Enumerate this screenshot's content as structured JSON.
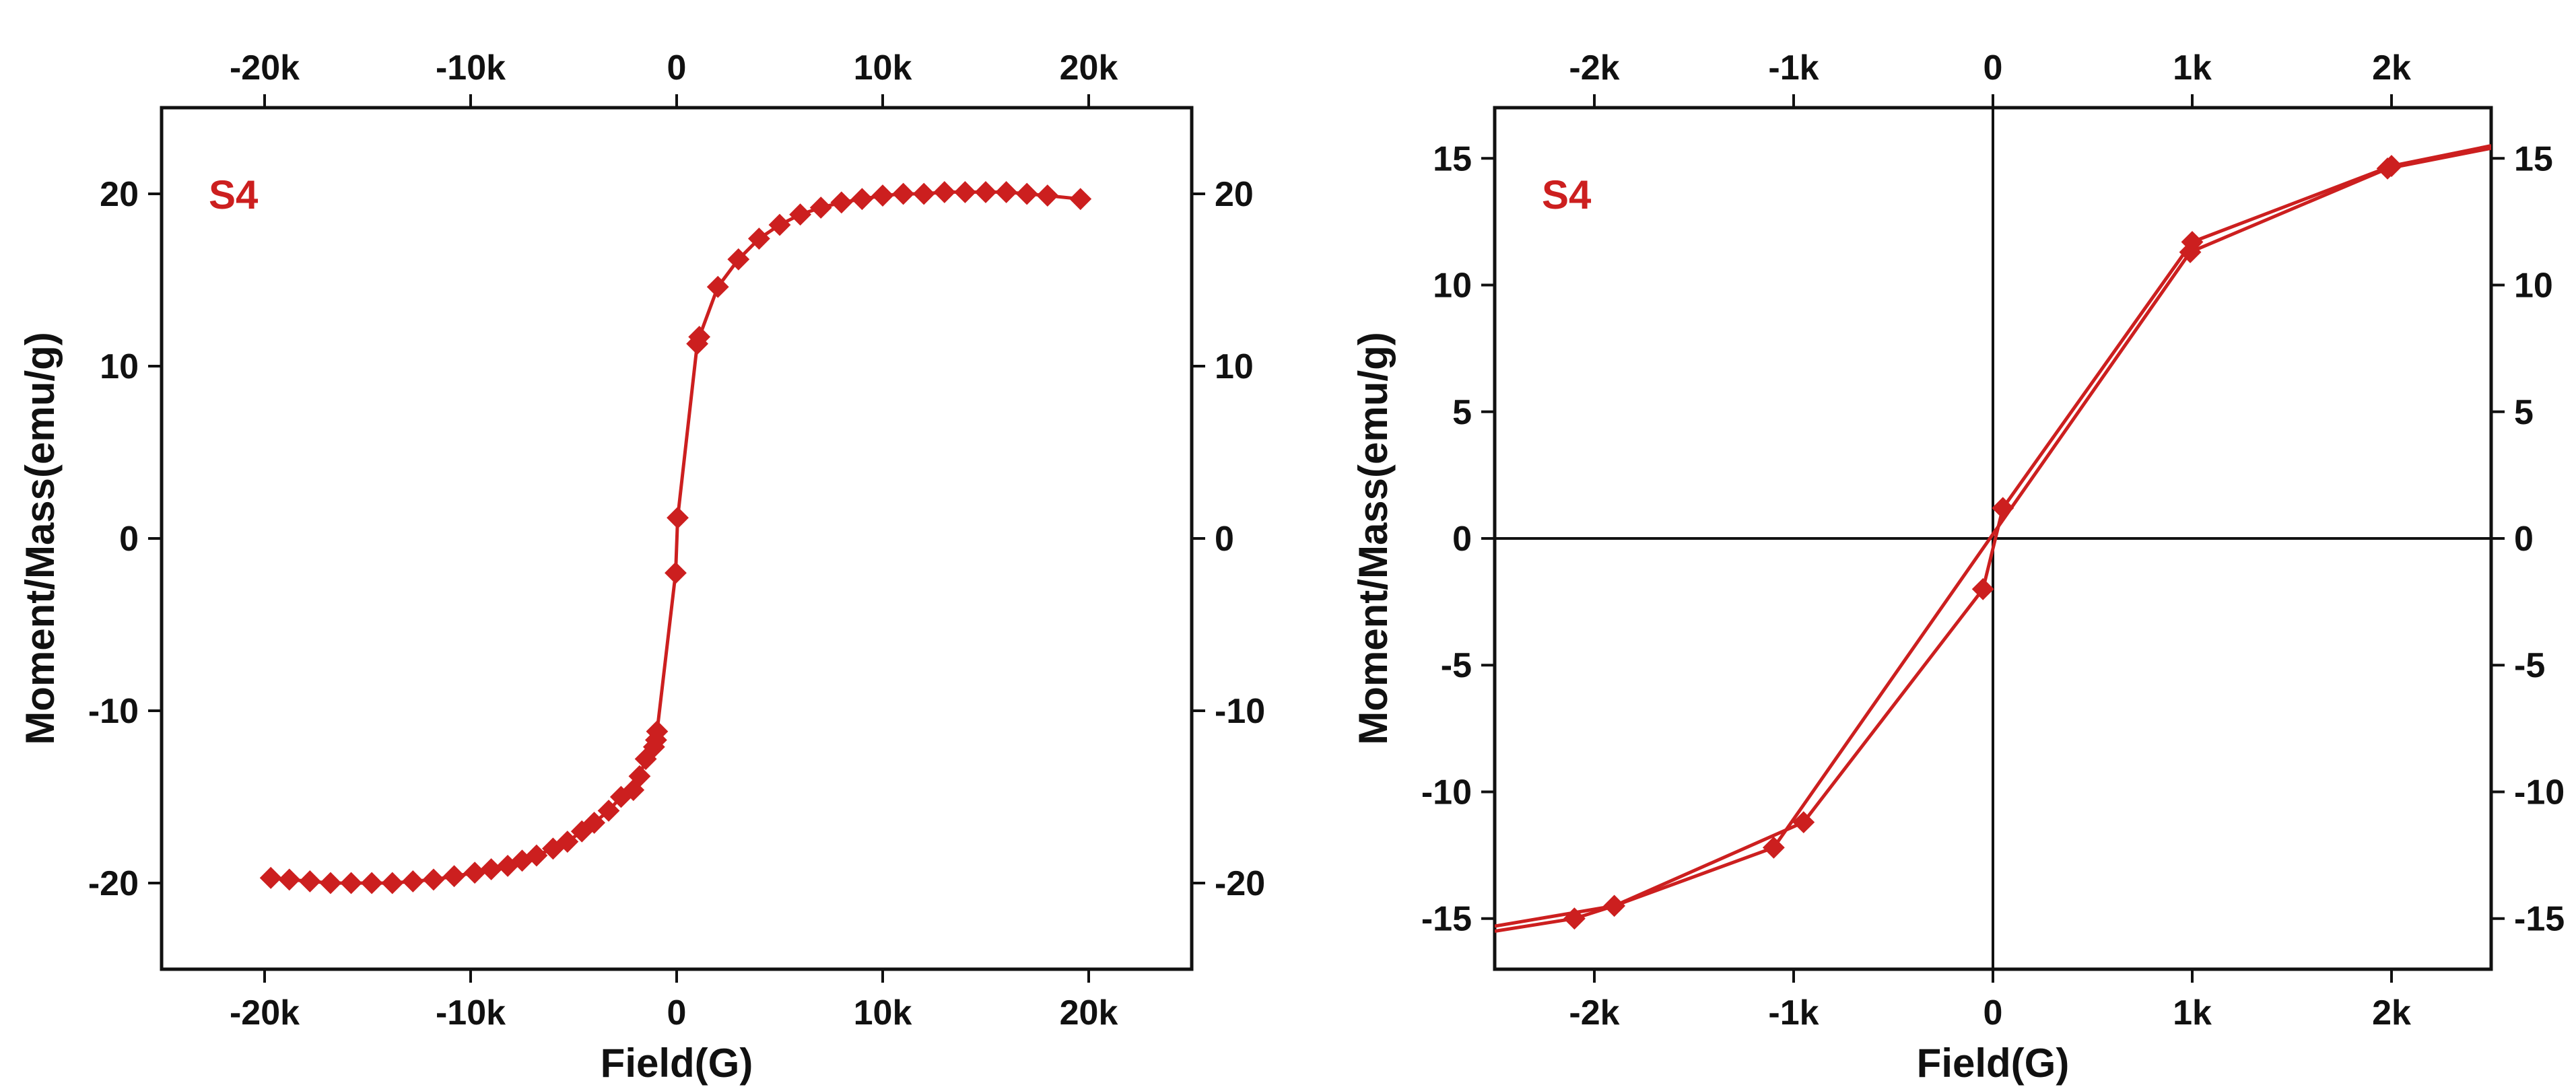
{
  "colors": {
    "series": "#cc1f1f",
    "axis": "#111111",
    "background": "#ffffff"
  },
  "chart_data": [
    {
      "type": "line",
      "xlabel": "Field(G)",
      "ylabel": "Moment/Mass(emu/g)",
      "xlim": [
        -25000,
        25000
      ],
      "ylim": [
        -25,
        25
      ],
      "xticks": [
        {
          "value": -20000,
          "label": "-20k"
        },
        {
          "value": -10000,
          "label": "-10k"
        },
        {
          "value": 0,
          "label": "0"
        },
        {
          "value": 10000,
          "label": "10k"
        },
        {
          "value": 20000,
          "label": "20k"
        }
      ],
      "yticks": [
        {
          "value": -20,
          "label": "-20"
        },
        {
          "value": -10,
          "label": "-10"
        },
        {
          "value": 0,
          "label": "0"
        },
        {
          "value": 10,
          "label": "10"
        },
        {
          "value": 20,
          "label": "20"
        }
      ],
      "mirror_axes": true,
      "zero_lines": false,
      "annotation": {
        "text": "S4",
        "position": "top-left"
      },
      "series": [
        {
          "x": [
            -19700,
            -18800,
            -17800,
            -16800,
            -15800,
            -14800,
            -13800,
            -12800,
            -11800,
            -10800,
            -9800,
            -9000,
            -8200,
            -7500,
            -6800,
            -6000,
            -5300,
            -4600,
            -4000,
            -3300,
            -2700,
            -2100,
            -1800,
            -1500,
            -1100,
            -1000,
            -950,
            -50,
            50,
            1000,
            1100,
            2000,
            3000,
            4000,
            5000,
            6000,
            7000,
            8000,
            9000,
            10000,
            11000,
            12000,
            13000,
            14000,
            15000,
            16000,
            17000,
            18000,
            19600
          ],
          "y": [
            -19.7,
            -19.8,
            -19.9,
            -20.0,
            -20.0,
            -20.0,
            -20.0,
            -19.9,
            -19.8,
            -19.6,
            -19.4,
            -19.2,
            -19.0,
            -18.7,
            -18.4,
            -18.0,
            -17.6,
            -17.0,
            -16.5,
            -15.8,
            -15.0,
            -14.6,
            -13.8,
            -12.8,
            -12.1,
            -11.7,
            -11.2,
            -2.0,
            1.2,
            11.3,
            11.7,
            14.6,
            16.2,
            17.4,
            18.2,
            18.8,
            19.2,
            19.5,
            19.7,
            19.9,
            20.0,
            20.0,
            20.1,
            20.1,
            20.1,
            20.1,
            20.0,
            19.9,
            19.7
          ]
        }
      ]
    },
    {
      "type": "line",
      "xlabel": "Field(G)",
      "ylabel": "Moment/Mass(emu/g)",
      "xlim": [
        -2500,
        2500
      ],
      "ylim": [
        -17,
        17
      ],
      "xticks": [
        {
          "value": -2000,
          "label": "-2k"
        },
        {
          "value": -1000,
          "label": "-1k"
        },
        {
          "value": 0,
          "label": "0"
        },
        {
          "value": 1000,
          "label": "1k"
        },
        {
          "value": 2000,
          "label": "2k"
        }
      ],
      "yticks": [
        {
          "value": -15,
          "label": "-15"
        },
        {
          "value": -10,
          "label": "-10"
        },
        {
          "value": -5,
          "label": "-5"
        },
        {
          "value": 0,
          "label": "0"
        },
        {
          "value": 5,
          "label": "5"
        },
        {
          "value": 10,
          "label": "10"
        },
        {
          "value": 15,
          "label": "15"
        }
      ],
      "mirror_axes": true,
      "zero_lines": true,
      "annotation": {
        "text": "S4",
        "position": "top-left"
      },
      "series": [
        {
          "x": [
            -2500,
            -2100,
            -1900,
            -1100,
            990,
            1980,
            2500
          ],
          "y": [
            -15.5,
            -15.0,
            -14.5,
            -12.2,
            11.3,
            14.6,
            15.4
          ]
        },
        {
          "x": [
            -2500,
            -1900,
            -950,
            -50,
            50,
            1000,
            2000,
            2500
          ],
          "y": [
            -15.3,
            -14.5,
            -11.2,
            -2.0,
            1.2,
            11.7,
            14.7,
            15.5
          ]
        }
      ],
      "markers": {
        "x": [
          -2100,
          -1900,
          -1100,
          -950,
          -50,
          50,
          990,
          1000,
          1980,
          2000
        ],
        "y": [
          -15.0,
          -14.5,
          -12.2,
          -11.2,
          -2.0,
          1.2,
          11.3,
          11.7,
          14.6,
          14.7
        ]
      }
    }
  ]
}
